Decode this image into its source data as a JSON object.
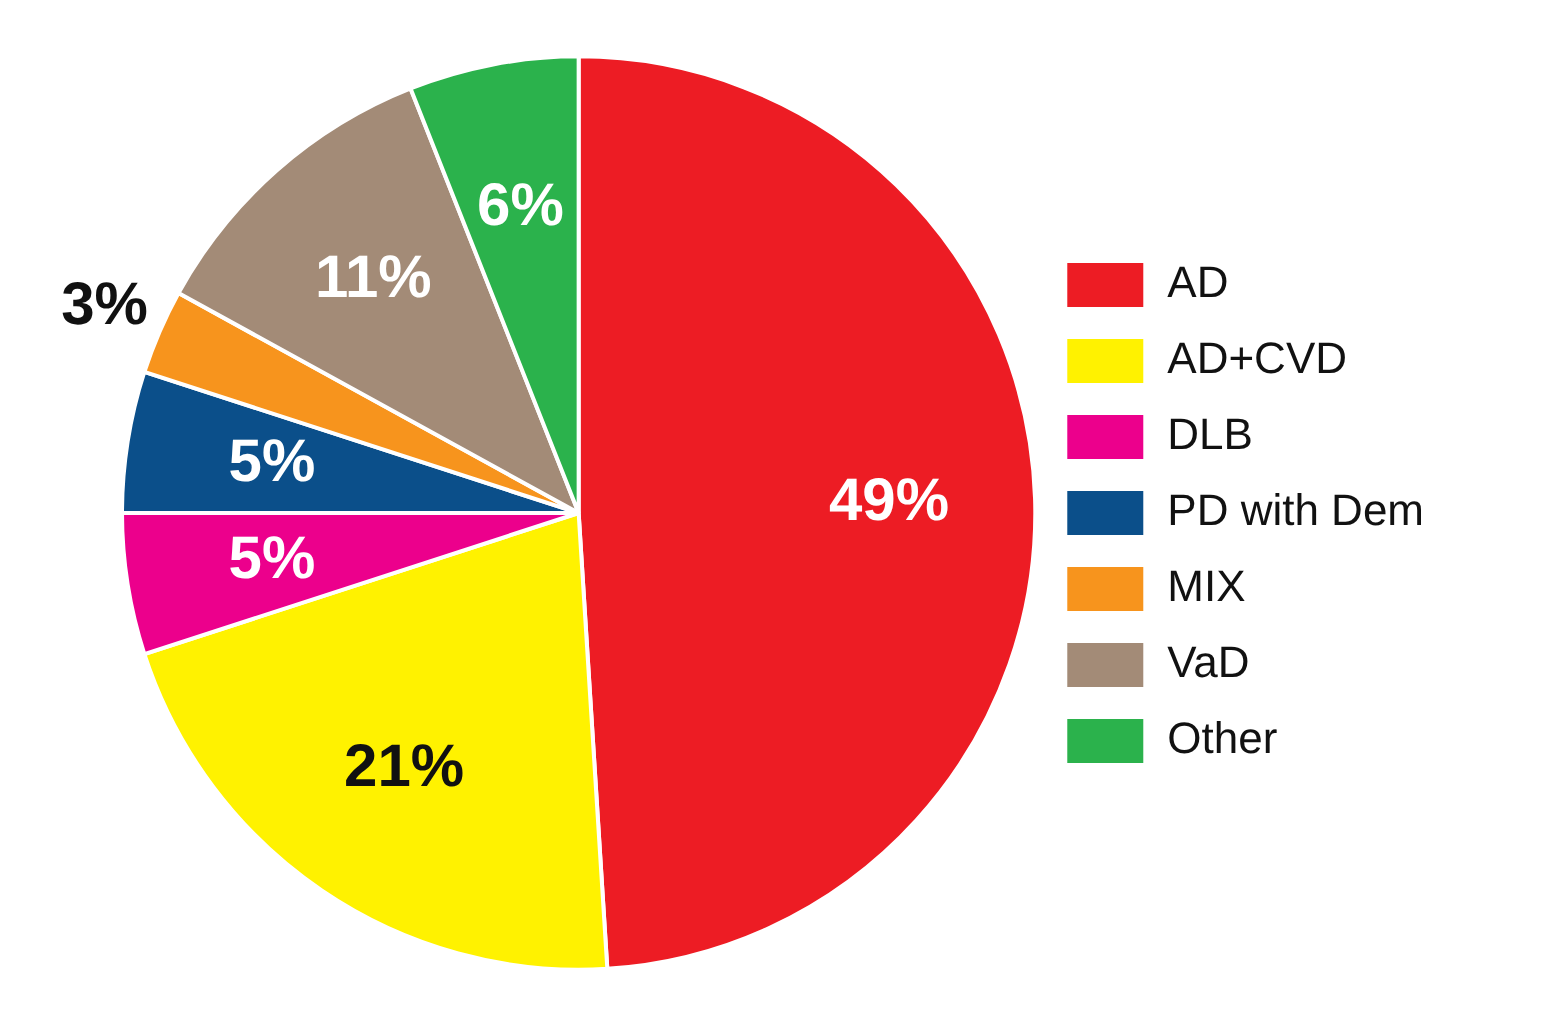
{
  "chart_data": {
    "type": "pie",
    "categories": [
      "AD",
      "AD+CVD",
      "DLB",
      "PD with Dem",
      "MIX",
      "VaD",
      "Other"
    ],
    "values": [
      49,
      21,
      5,
      5,
      3,
      11,
      6
    ],
    "colors": [
      "#ed1c24",
      "#fff200",
      "#ec008c",
      "#0b4f8a",
      "#f7941d",
      "#a38b77",
      "#2bb24c"
    ],
    "value_labels": [
      "49%",
      "21%",
      "5%",
      "5%",
      "3%",
      "11%",
      "6%"
    ],
    "legend": "right"
  }
}
